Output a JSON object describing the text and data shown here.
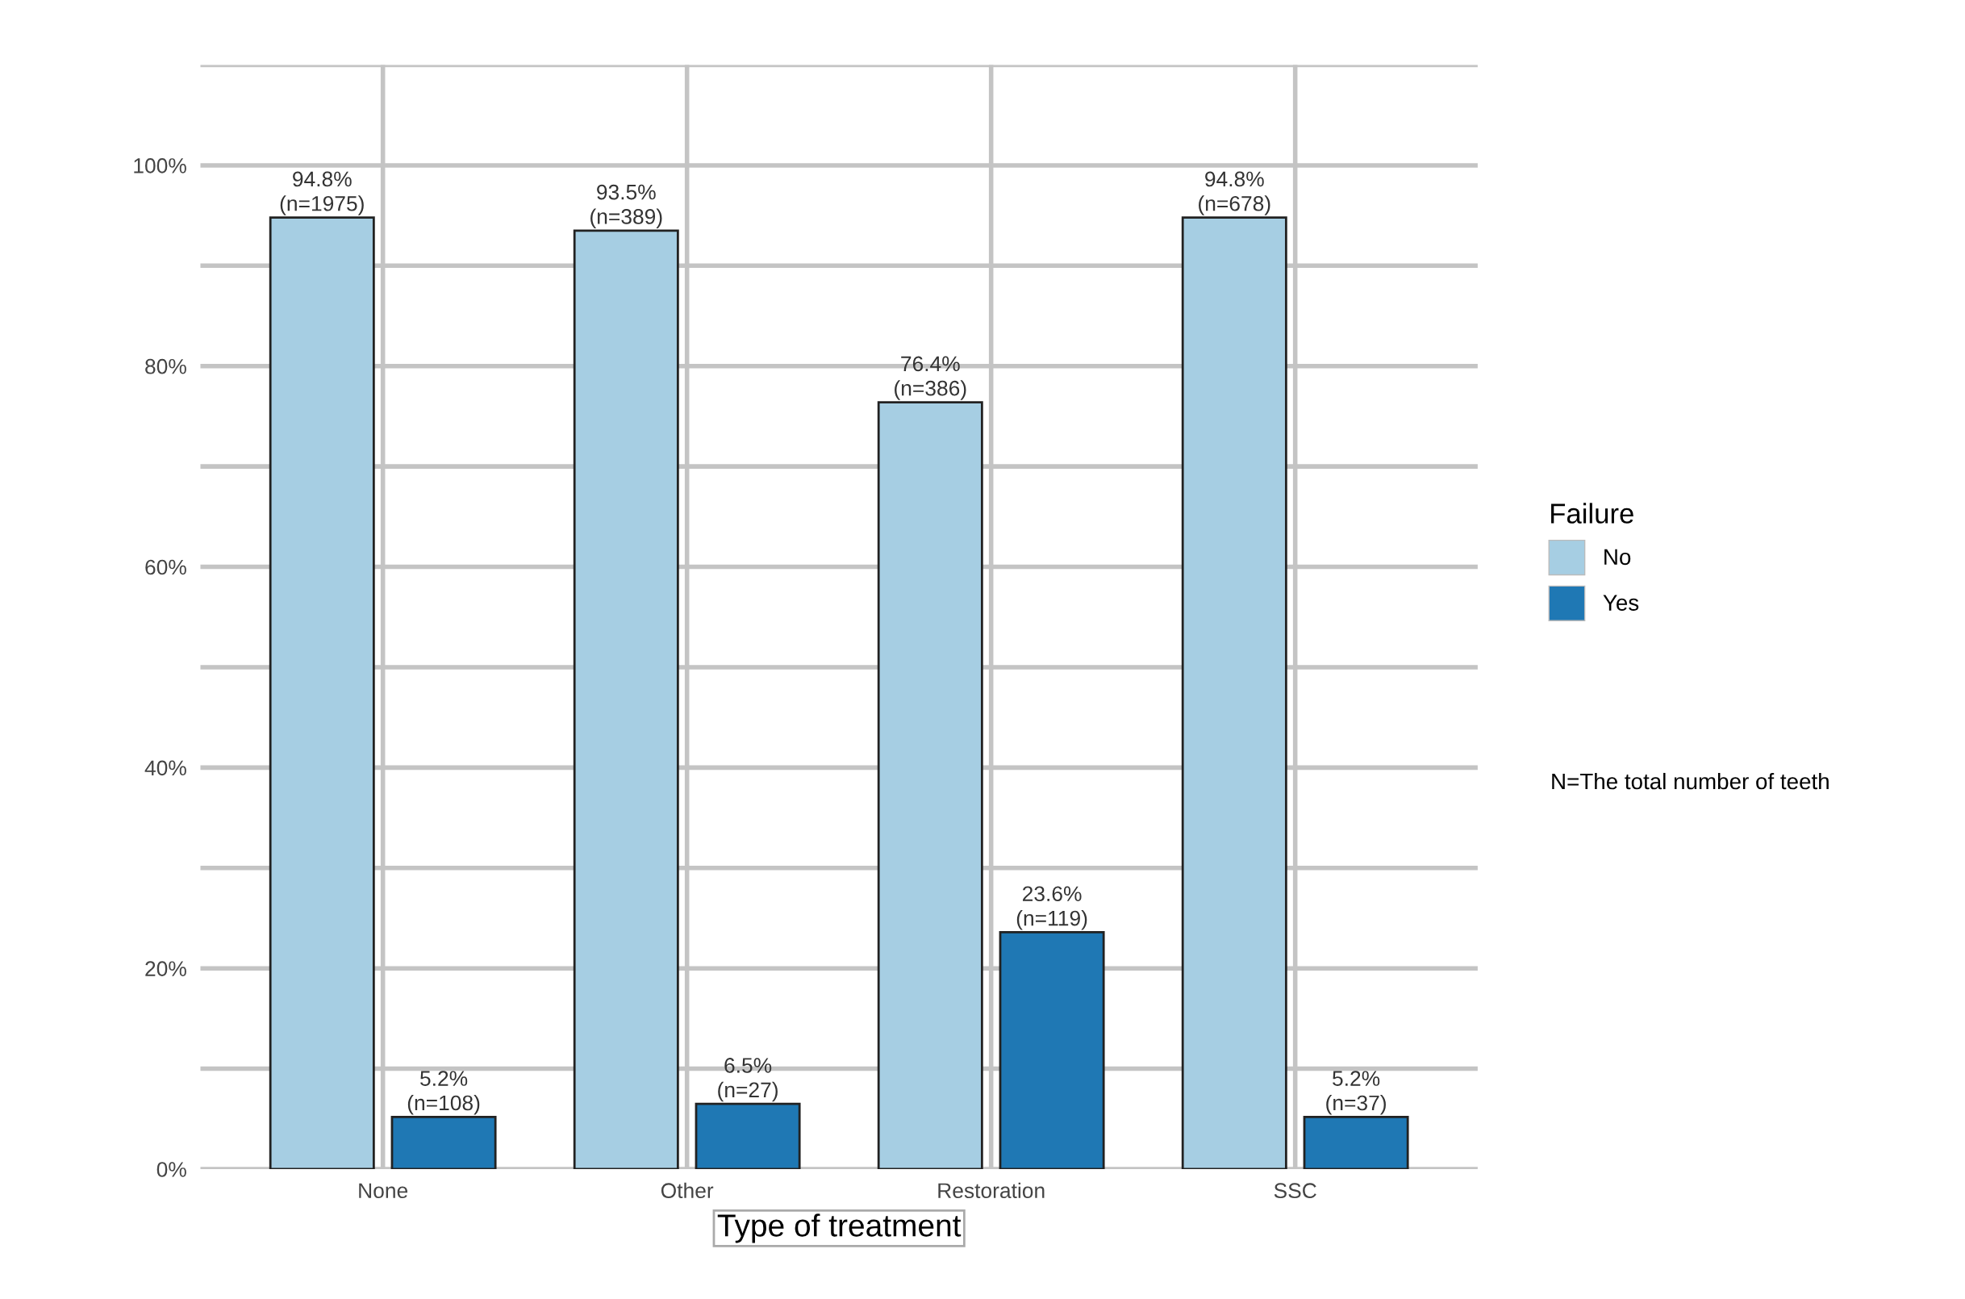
{
  "chart_data": {
    "type": "bar",
    "xlabel": "Type of treatment",
    "legend_title": "Failure",
    "legend": "right",
    "grid": true,
    "categories": [
      "None",
      "Other",
      "Restoration",
      "SSC"
    ],
    "series": [
      {
        "name": "No",
        "color": "#a6cee3",
        "values": [
          94.8,
          93.5,
          76.4,
          94.8
        ],
        "value_labels": [
          "94.8%\n(n=1975)",
          "93.5%\n(n=389)",
          "76.4%\n(n=386)",
          "94.8%\n(n=678)"
        ]
      },
      {
        "name": "Yes",
        "color": "#1f78b4",
        "values": [
          5.2,
          6.5,
          23.6,
          5.2
        ],
        "value_labels": [
          "5.2%\n(n=108)",
          "6.5%\n(n=27)",
          "23.6%\n(n=119)",
          "5.2%\n(n=37)"
        ]
      }
    ],
    "ylim": [
      0,
      110
    ],
    "yticks": [
      {
        "value": 0,
        "label": "0%"
      },
      {
        "value": 10,
        "label": null
      },
      {
        "value": 20,
        "label": "20%"
      },
      {
        "value": 30,
        "label": null
      },
      {
        "value": 40,
        "label": "40%"
      },
      {
        "value": 50,
        "label": null
      },
      {
        "value": 60,
        "label": "60%"
      },
      {
        "value": 70,
        "label": null
      },
      {
        "value": 80,
        "label": "80%"
      },
      {
        "value": 90,
        "label": null
      },
      {
        "value": 100,
        "label": "100%"
      },
      {
        "value": 110,
        "label": null
      }
    ],
    "annotations": [
      "N=The total number of teeth"
    ]
  }
}
